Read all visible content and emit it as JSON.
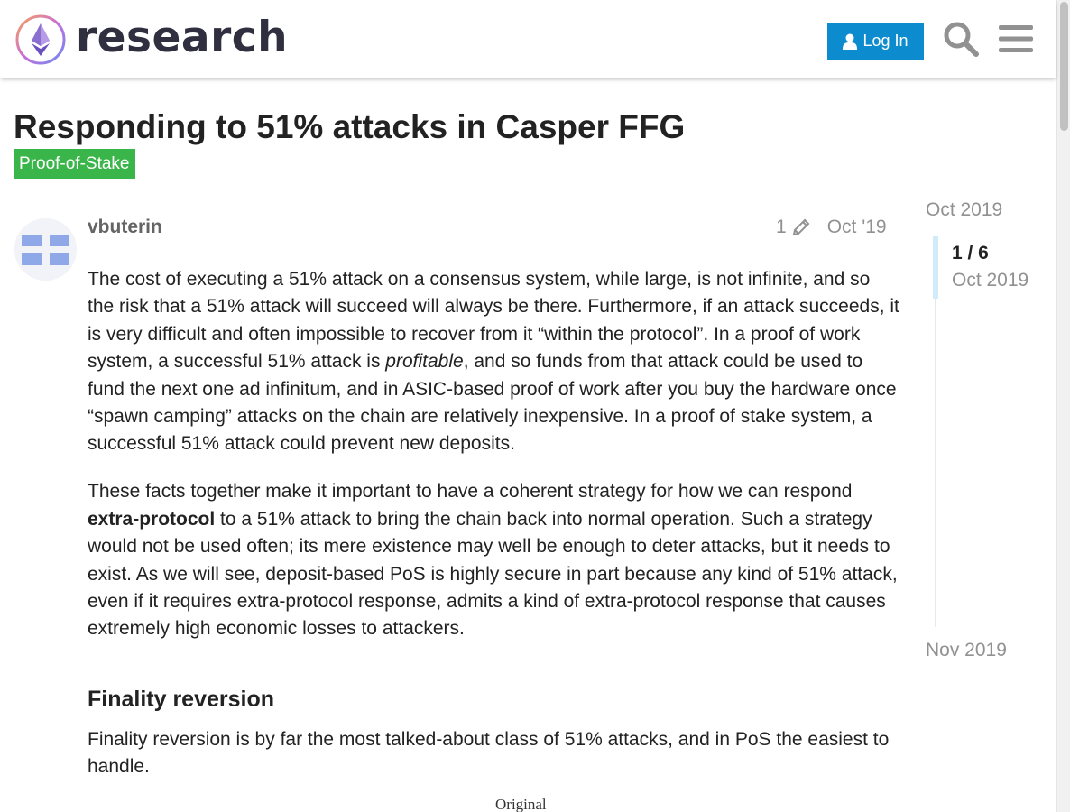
{
  "header": {
    "site_name": "research",
    "login_label": "Log In",
    "colors": {
      "accent": "#0c8ccf",
      "tag": "#3ab54a"
    }
  },
  "topic": {
    "title": "Responding to 51% attacks in Casper FFG",
    "category": "Proof-of-Stake"
  },
  "post": {
    "username": "vbuterin",
    "edit_count": "1",
    "date": "Oct '19",
    "p1_a": "The cost of executing a 51% attack on a consensus system, while large, is not infinite, and so the risk that a 51% attack will succeed will always be there. Furthermore, if an attack succeeds, it is very difficult and often impossible to recover from it “within the protocol”. In a proof of work system, a successful 51% attack is ",
    "p1_em": "profitable",
    "p1_b": ", and so funds from that attack could be used to fund the next one ad infinitum, and in ASIC-based proof of work after you buy the hardware once “spawn camping” attacks on the chain are relatively inexpensive. In a proof of stake system, a successful 51% attack could prevent new deposits.",
    "p2_a": "These facts together make it important to have a coherent strategy for how we can respond ",
    "p2_strong": "extra-protocol",
    "p2_b": " to a 51% attack to bring the chain back into normal operation. Such a strategy would not be used often; its mere existence may well be enough to deter attacks, but it needs to exist. As we will see, deposit-based PoS is highly secure in part because any kind of 51% attack, even if it requires extra-protocol response, admits a kind of extra-protocol response that causes extremely high economic losses to attackers.",
    "h_finality": "Finality reversion",
    "p3": "Finality reversion is by far the most talked-about class of 51% attacks, and in PoS the easiest to handle.",
    "figure_caption": "Original"
  },
  "timeline": {
    "start": "Oct 2019",
    "position": "1 / 6",
    "current_date": "Oct 2019",
    "end": "Nov 2019",
    "progress": 0.1667
  },
  "icons": [
    "logo-icon",
    "user-icon",
    "search-icon",
    "hamburger-menu-icon",
    "pencil-icon",
    "default-avatar-icon"
  ]
}
